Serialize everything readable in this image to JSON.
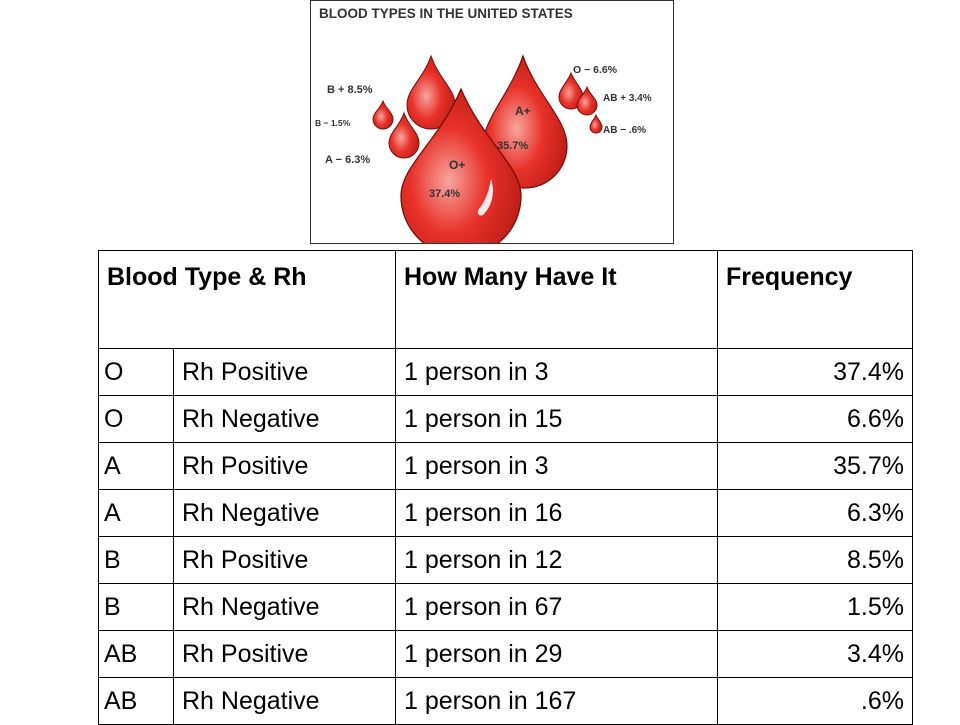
{
  "poster": {
    "title": "BLOOD TYPES IN THE UNITED STATES",
    "labels": {
      "b_pos": "B + 8.5%",
      "b_neg": "B − 1.5%",
      "a_neg": "A − 6.3%",
      "o_neg": "O − 6.6%",
      "ab_pos": "AB + 3.4%",
      "ab_neg": "AB − .6%",
      "a_pos_type": "A+",
      "a_pos_pct": "35.7%",
      "o_pos_type": "O+",
      "o_pos_pct": "37.4%"
    },
    "drop_color": "#e8322a"
  },
  "table": {
    "headers": {
      "type_rh": "Blood Type & Rh",
      "how_many": "How Many Have It",
      "frequency": "Frequency"
    },
    "rows": [
      {
        "type": "O",
        "rh": "Rh Positive",
        "how": "1 person in 3",
        "freq": "37.4%"
      },
      {
        "type": "O",
        "rh": "Rh Negative",
        "how": "1 person in 15",
        "freq": "6.6%"
      },
      {
        "type": "A",
        "rh": "Rh Positive",
        "how": "1 person in 3",
        "freq": "35.7%"
      },
      {
        "type": "A",
        "rh": "Rh Negative",
        "how": "1 person in 16",
        "freq": "6.3%"
      },
      {
        "type": "B",
        "rh": "Rh Positive",
        "how": "1 person in 12",
        "freq": "8.5%"
      },
      {
        "type": "B",
        "rh": "Rh Negative",
        "how": "1 person in 67",
        "freq": "1.5%"
      },
      {
        "type": "AB",
        "rh": "Rh Positive",
        "how": "1 person in 29",
        "freq": "3.4%"
      },
      {
        "type": "AB",
        "rh": "Rh Negative",
        "how": "1 person in 167",
        "freq": ".6%"
      }
    ]
  }
}
